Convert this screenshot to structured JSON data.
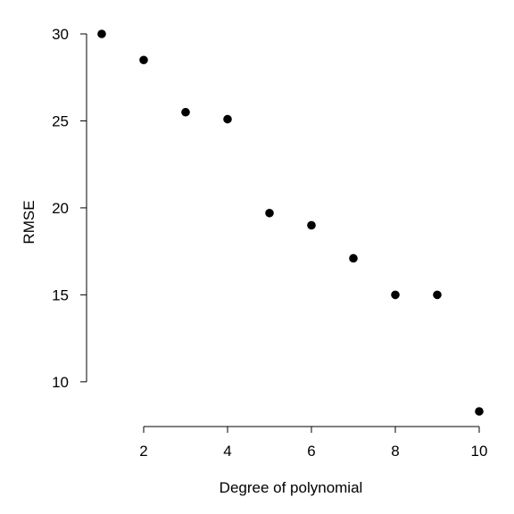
{
  "chart_data": {
    "type": "scatter",
    "title": "",
    "xlabel": "Degree of polynomial",
    "ylabel": "RMSE",
    "x": [
      1,
      2,
      3,
      4,
      5,
      6,
      7,
      8,
      9,
      10
    ],
    "y": [
      30.0,
      28.5,
      25.5,
      25.1,
      19.7,
      19.0,
      17.1,
      15.0,
      15.0,
      8.3
    ],
    "x_ticks": [
      2,
      4,
      6,
      8,
      10
    ],
    "y_ticks": [
      10,
      15,
      20,
      25,
      30
    ],
    "x_tick_labels": [
      "2",
      "4",
      "6",
      "8",
      "10"
    ],
    "y_tick_labels": [
      "10",
      "15",
      "20",
      "25",
      "30"
    ],
    "xlim": [
      1,
      10
    ],
    "ylim": [
      8.3,
      30
    ],
    "grid": false,
    "legend": "none",
    "point_color": "#000000"
  }
}
